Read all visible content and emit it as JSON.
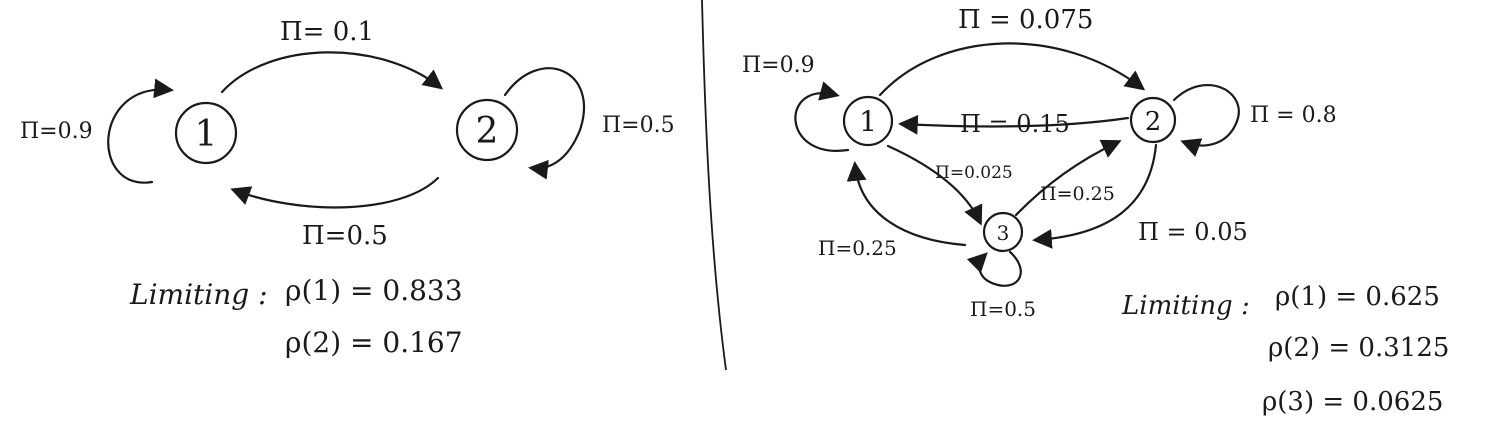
{
  "left": {
    "nodes": [
      "1",
      "2"
    ],
    "edges": {
      "self_1": "Π=0.9",
      "e12": "Π= 0.1",
      "self_2": "Π=0.5",
      "e21": "Π=0.5"
    },
    "limiting": {
      "label": "Limiting :",
      "lines": [
        "ρ(1) = 0.833",
        "ρ(2) = 0.167"
      ]
    }
  },
  "right": {
    "nodes": [
      "1",
      "2",
      "3"
    ],
    "edges": {
      "e12": "Π = 0.075",
      "self_1": "Π=0.9",
      "e21": "Π = 0.15",
      "self_2": "Π = 0.8",
      "e13": "Π=0.025",
      "e32": "Π=0.25",
      "e23": "Π = 0.05",
      "e31": "Π=0.25",
      "self_3": "Π=0.5"
    },
    "limiting": {
      "label": "Limiting :",
      "lines": [
        "ρ(1) = 0.625",
        "ρ(2) = 0.3125",
        "ρ(3) = 0.0625"
      ]
    }
  }
}
